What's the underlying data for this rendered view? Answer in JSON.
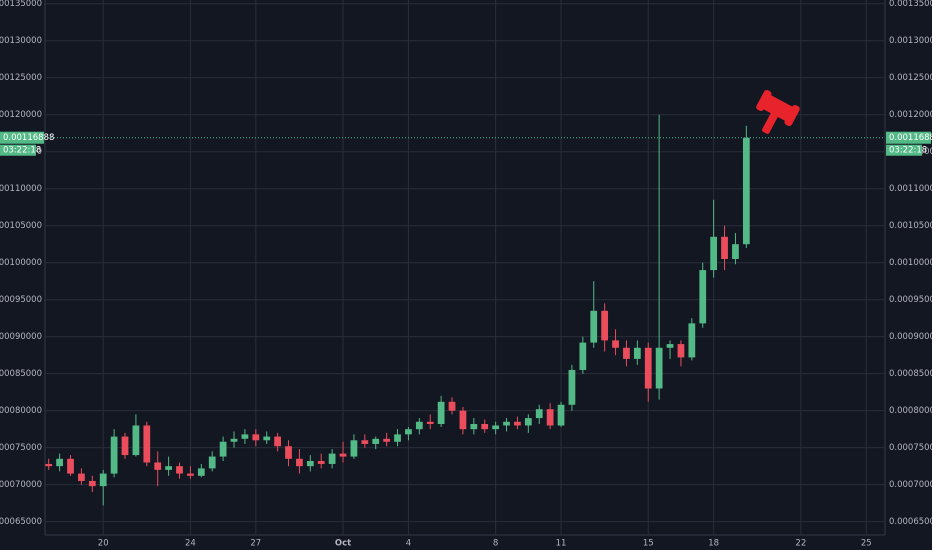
{
  "chart_data": {
    "type": "candlestick",
    "xlim": [
      17.33,
      55.86
    ],
    "ylim": [
      0.000632,
      0.001355
    ],
    "grid": true,
    "up_color": "#53b987",
    "down_color": "#eb4d5c",
    "yticks": [
      {
        "value": 0.00065,
        "label": "0.00065000"
      },
      {
        "value": 0.0007,
        "label": "0.00070000"
      },
      {
        "value": 0.00075,
        "label": "0.00075000"
      },
      {
        "value": 0.0008,
        "label": "0.00080000"
      },
      {
        "value": 0.00085,
        "label": "0.00085000"
      },
      {
        "value": 0.0009,
        "label": "0.00090000"
      },
      {
        "value": 0.00095,
        "label": "0.00095000"
      },
      {
        "value": 0.001,
        "label": "0.00100000"
      },
      {
        "value": 0.00105,
        "label": "0.00105000"
      },
      {
        "value": 0.0011,
        "label": "0.00110000"
      },
      {
        "value": 0.00115,
        "label": "0.00115000"
      },
      {
        "value": 0.0012,
        "label": "0.00120000"
      },
      {
        "value": 0.00125,
        "label": "0.00125000"
      },
      {
        "value": 0.0013,
        "label": "0.00130000"
      },
      {
        "value": 0.00135,
        "label": "0.00135000"
      }
    ],
    "xticks": [
      20,
      24,
      27,
      {
        "value": 31,
        "label": "Oct"
      },
      {
        "value": 34,
        "label": "4"
      },
      {
        "value": 38,
        "label": "8"
      },
      {
        "value": 41,
        "label": "11"
      },
      {
        "value": 45,
        "label": "15"
      },
      {
        "value": 48,
        "label": "18"
      },
      {
        "value": 52,
        "label": "22"
      },
      {
        "value": 55,
        "label": "25"
      }
    ],
    "last_price": 0.00116888,
    "countdown": "03:22:18",
    "x": [
      17.5,
      18,
      18.5,
      19,
      19.5,
      20,
      20.5,
      21,
      21.5,
      22,
      22.5,
      23,
      23.5,
      24,
      24.5,
      25,
      25.5,
      26,
      26.5,
      27,
      27.5,
      28,
      28.5,
      29,
      29.5,
      30,
      30.5,
      31,
      31.5,
      32,
      32.5,
      33,
      33.5,
      34,
      34.5,
      35,
      35.5,
      36,
      36.5,
      37,
      37.5,
      38,
      38.5,
      39,
      39.5,
      40,
      40.5,
      41,
      41.5,
      42,
      42.5,
      43,
      43.5,
      44,
      44.5,
      45,
      45.5,
      46,
      46.5,
      47,
      47.5,
      48,
      48.5,
      49,
      49.5
    ],
    "open": [
      0.000728,
      0.000725,
      0.000735,
      0.000715,
      0.000705,
      0.000698,
      0.000715,
      0.000765,
      0.00074,
      0.00078,
      0.00073,
      0.00072,
      0.000725,
      0.000715,
      0.000712,
      0.000722,
      0.000738,
      0.000758,
      0.000762,
      0.000768,
      0.00076,
      0.000765,
      0.000752,
      0.000735,
      0.000725,
      0.000732,
      0.000728,
      0.000742,
      0.000738,
      0.00076,
      0.000755,
      0.000762,
      0.000758,
      0.000768,
      0.000775,
      0.000785,
      0.000782,
      0.000812,
      0.0008,
      0.000775,
      0.000782,
      0.000775,
      0.00078,
      0.000785,
      0.00078,
      0.00079,
      0.000802,
      0.00078,
      0.000808,
      0.000855,
      0.000892,
      0.000935,
      0.000895,
      0.000885,
      0.00087,
      0.000885,
      0.00083,
      0.000885,
      0.00089,
      0.000872,
      0.000918,
      0.00099,
      0.001035,
      0.001005,
      0.001025
    ],
    "high": [
      0.000735,
      0.000742,
      0.00074,
      0.000722,
      0.000712,
      0.00072,
      0.000775,
      0.00077,
      0.000795,
      0.000785,
      0.000745,
      0.000738,
      0.00073,
      0.000725,
      0.000728,
      0.000745,
      0.000765,
      0.000772,
      0.000775,
      0.000775,
      0.000772,
      0.00077,
      0.00076,
      0.000748,
      0.00074,
      0.000742,
      0.000748,
      0.000758,
      0.000768,
      0.000768,
      0.000765,
      0.00077,
      0.000775,
      0.000778,
      0.00079,
      0.000795,
      0.00082,
      0.000818,
      0.000805,
      0.00079,
      0.000788,
      0.000785,
      0.00079,
      0.000792,
      0.000795,
      0.000808,
      0.00081,
      0.000812,
      0.000862,
      0.0009,
      0.000975,
      0.000945,
      0.00091,
      0.000895,
      0.000895,
      0.000892,
      0.0012,
      0.000895,
      0.000895,
      0.000925,
      0.001,
      0.001085,
      0.00105,
      0.00104,
      0.001185
    ],
    "low": [
      0.00072,
      0.000718,
      0.000712,
      0.0007,
      0.00069,
      0.000672,
      0.00071,
      0.000735,
      0.000738,
      0.000725,
      0.000698,
      0.000712,
      0.000708,
      0.000708,
      0.00071,
      0.000718,
      0.000732,
      0.00075,
      0.000755,
      0.000752,
      0.000755,
      0.000745,
      0.000725,
      0.000715,
      0.000718,
      0.000722,
      0.000722,
      0.00073,
      0.000735,
      0.00075,
      0.000748,
      0.000752,
      0.000752,
      0.00076,
      0.000768,
      0.000775,
      0.000778,
      0.000795,
      0.000768,
      0.000768,
      0.00077,
      0.000768,
      0.000772,
      0.000775,
      0.00077,
      0.000782,
      0.000775,
      0.000778,
      0.0008,
      0.00085,
      0.000885,
      0.00088,
      0.000875,
      0.00086,
      0.000862,
      0.000812,
      0.000815,
      0.00087,
      0.00086,
      0.000868,
      0.000912,
      0.00098,
      0.00099,
      0.000998,
      0.00102
    ],
    "close": [
      0.000725,
      0.000735,
      0.000715,
      0.000705,
      0.000698,
      0.000715,
      0.000765,
      0.00074,
      0.00078,
      0.00073,
      0.00072,
      0.000725,
      0.000715,
      0.000712,
      0.000722,
      0.000738,
      0.000758,
      0.000762,
      0.000768,
      0.00076,
      0.000765,
      0.000752,
      0.000735,
      0.000725,
      0.000732,
      0.000728,
      0.000742,
      0.000738,
      0.00076,
      0.000755,
      0.000762,
      0.000758,
      0.000768,
      0.000775,
      0.000785,
      0.000782,
      0.000812,
      0.0008,
      0.000775,
      0.000782,
      0.000775,
      0.00078,
      0.000785,
      0.00078,
      0.00079,
      0.000802,
      0.00078,
      0.000808,
      0.000855,
      0.000892,
      0.000935,
      0.000895,
      0.000885,
      0.00087,
      0.000885,
      0.00083,
      0.000885,
      0.00089,
      0.000872,
      0.000918,
      0.00099,
      0.001035,
      0.001005,
      0.001025,
      0.00116888
    ]
  }
}
